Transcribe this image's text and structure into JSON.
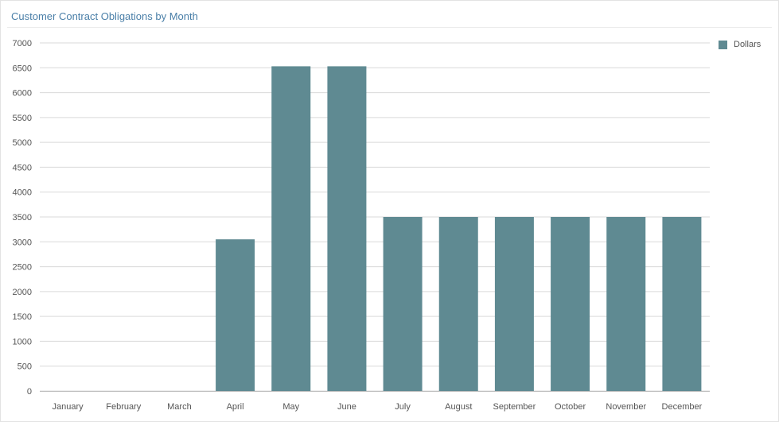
{
  "header": {
    "title": "Customer Contract Obligations by Month"
  },
  "colors": {
    "bar": "#5f8a92",
    "grid": "#d9d9d9",
    "axis_text": "#555555",
    "title": "#4a7fa8"
  },
  "chart_data": {
    "type": "bar",
    "title": "Customer Contract Obligations by Month",
    "xlabel": "",
    "ylabel": "",
    "categories": [
      "January",
      "February",
      "March",
      "April",
      "May",
      "June",
      "July",
      "August",
      "September",
      "October",
      "November",
      "December"
    ],
    "series": [
      {
        "name": "Dollars",
        "values": [
          0,
          0,
          0,
          3050,
          6530,
          6530,
          3500,
          3500,
          3500,
          3500,
          3500,
          3500
        ]
      }
    ],
    "ylim": [
      0,
      7000
    ],
    "yticks": [
      0,
      500,
      1000,
      1500,
      2000,
      2500,
      3000,
      3500,
      4000,
      4500,
      5000,
      5500,
      6000,
      6500,
      7000
    ],
    "grid": true,
    "legend": {
      "position": "top-right",
      "entries": [
        "Dollars"
      ]
    }
  }
}
